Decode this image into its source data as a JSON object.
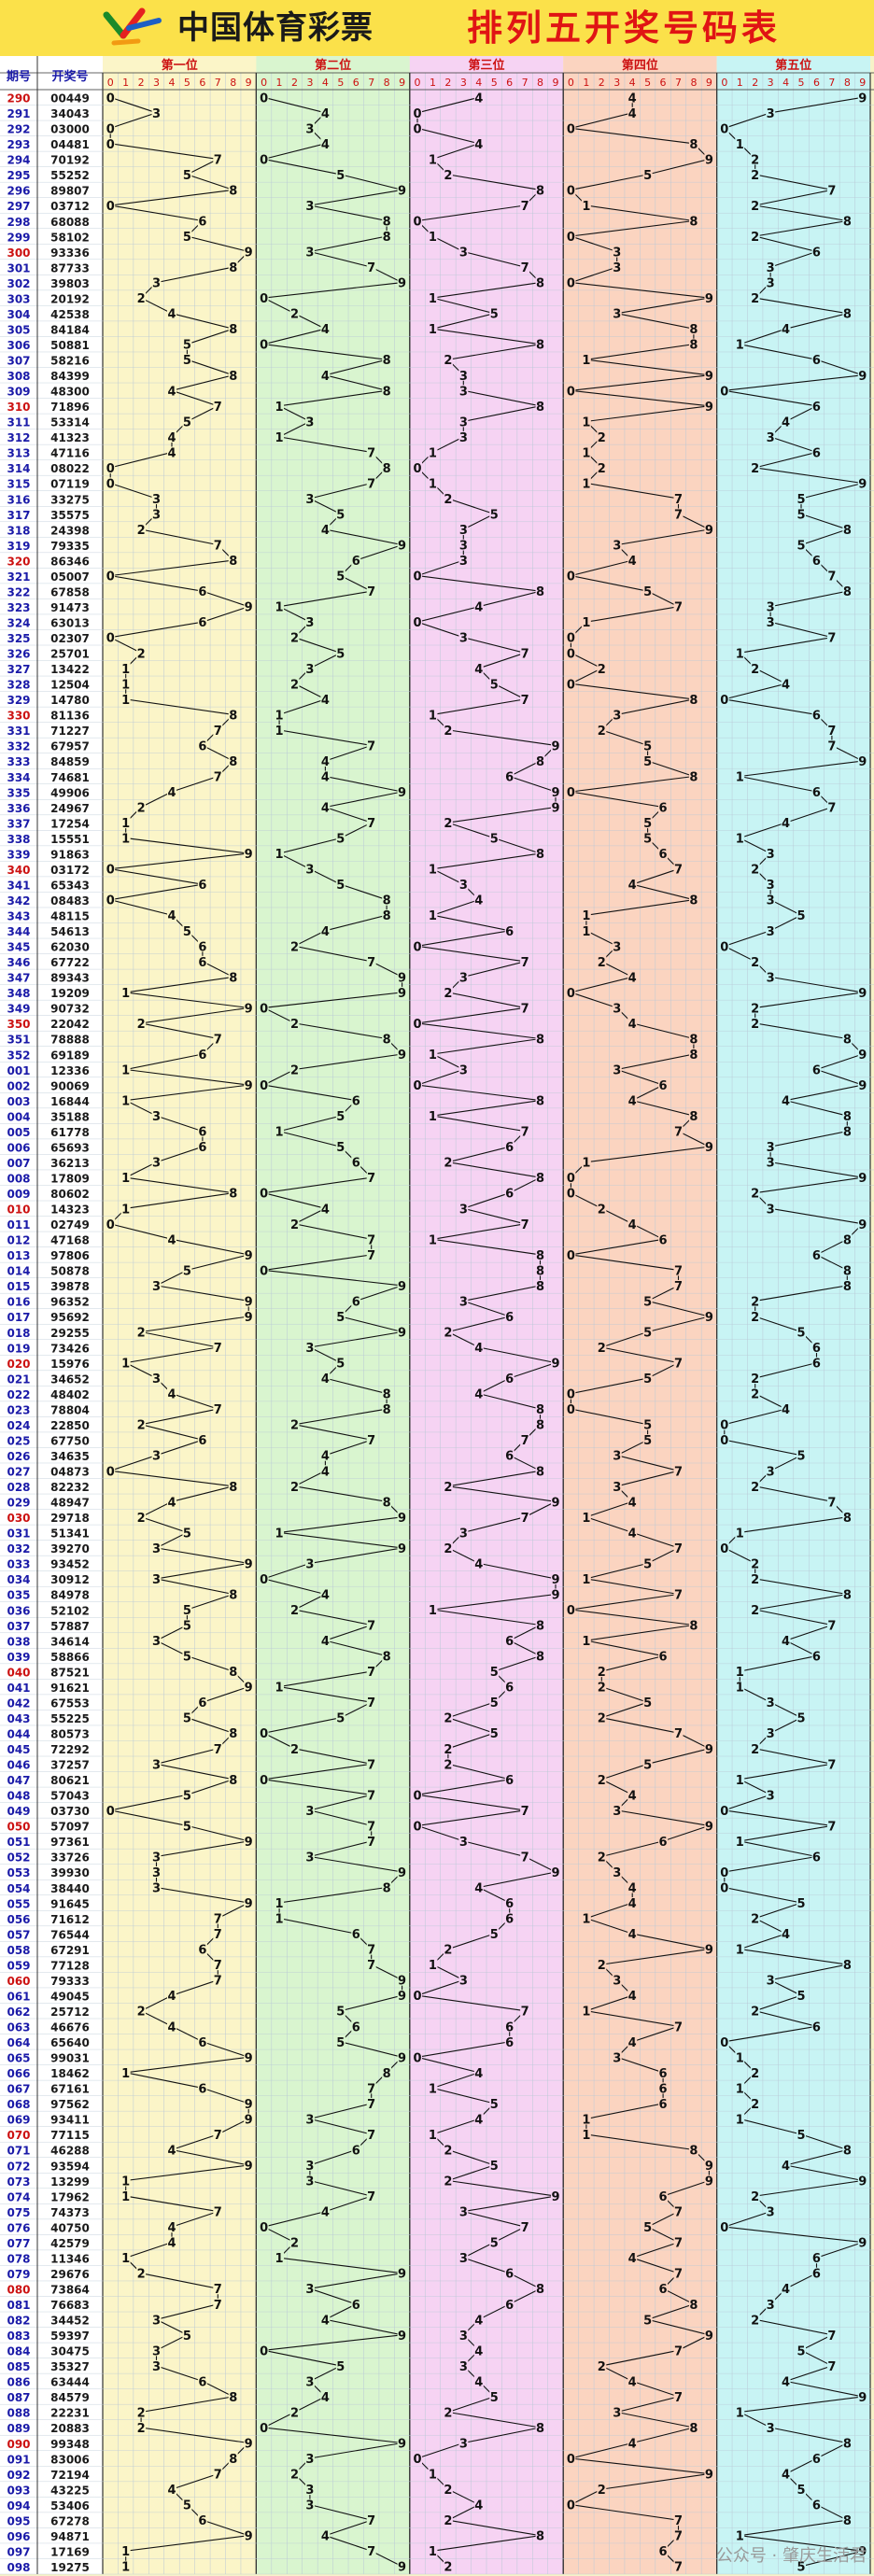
{
  "header": {
    "brand": "中国体育彩票",
    "title": "排列五开奖号码表"
  },
  "columns": {
    "issue": "期号",
    "number": "开奖号"
  },
  "positions": [
    "第一位",
    "第二位",
    "第三位",
    "第四位",
    "第五位"
  ],
  "digits": [
    "0",
    "1",
    "2",
    "3",
    "4",
    "5",
    "6",
    "7",
    "8",
    "9"
  ],
  "watermark": "公众号 · 肇庆生活君",
  "colors": {
    "header_bg": "#fbe14a",
    "title": "#e01414",
    "issue_red": "#cc1111",
    "issue_blue": "#1a1aa8",
    "band1": "#fbf5c8",
    "band2": "#d9f5cf",
    "band3": "#f6d3f3",
    "band4": "#fbd4c0",
    "band5": "#c8f4f4"
  },
  "chart_data": {
    "type": "line",
    "title": "排列五开奖号码表",
    "series": [
      {
        "name": "第一位"
      },
      {
        "name": "第二位"
      },
      {
        "name": "第三位"
      },
      {
        "name": "第四位"
      },
      {
        "name": "第五位"
      }
    ],
    "rows": [
      [
        "290",
        "00449"
      ],
      [
        "291",
        "34043"
      ],
      [
        "292",
        "03000"
      ],
      [
        "293",
        "04481"
      ],
      [
        "294",
        "70192"
      ],
      [
        "295",
        "55252"
      ],
      [
        "296",
        "89807"
      ],
      [
        "297",
        "03712"
      ],
      [
        "298",
        "68088"
      ],
      [
        "299",
        "58102"
      ],
      [
        "300",
        "93336"
      ],
      [
        "301",
        "87733"
      ],
      [
        "302",
        "39803"
      ],
      [
        "303",
        "20192"
      ],
      [
        "304",
        "42538"
      ],
      [
        "305",
        "84184"
      ],
      [
        "306",
        "50881"
      ],
      [
        "307",
        "58216"
      ],
      [
        "308",
        "84399"
      ],
      [
        "309",
        "48300"
      ],
      [
        "310",
        "71896"
      ],
      [
        "311",
        "53314"
      ],
      [
        "312",
        "41323"
      ],
      [
        "313",
        "47116"
      ],
      [
        "314",
        "08022"
      ],
      [
        "315",
        "07119"
      ],
      [
        "316",
        "33275"
      ],
      [
        "317",
        "35575"
      ],
      [
        "318",
        "24398"
      ],
      [
        "319",
        "79335"
      ],
      [
        "320",
        "86346"
      ],
      [
        "321",
        "05007"
      ],
      [
        "322",
        "67858"
      ],
      [
        "323",
        "91473"
      ],
      [
        "324",
        "63013"
      ],
      [
        "325",
        "02307"
      ],
      [
        "326",
        "25701"
      ],
      [
        "327",
        "13422"
      ],
      [
        "328",
        "12504"
      ],
      [
        "329",
        "14780"
      ],
      [
        "330",
        "81136"
      ],
      [
        "331",
        "71227"
      ],
      [
        "332",
        "67957"
      ],
      [
        "333",
        "84859"
      ],
      [
        "334",
        "74681"
      ],
      [
        "335",
        "49906"
      ],
      [
        "336",
        "24967"
      ],
      [
        "337",
        "17254"
      ],
      [
        "338",
        "15551"
      ],
      [
        "339",
        "91863"
      ],
      [
        "340",
        "03172"
      ],
      [
        "341",
        "65343"
      ],
      [
        "342",
        "08483"
      ],
      [
        "343",
        "48115"
      ],
      [
        "344",
        "54613"
      ],
      [
        "345",
        "62030"
      ],
      [
        "346",
        "67722"
      ],
      [
        "347",
        "89343"
      ],
      [
        "348",
        "19209"
      ],
      [
        "349",
        "90732"
      ],
      [
        "350",
        "22042"
      ],
      [
        "351",
        "78888"
      ],
      [
        "352",
        "69189"
      ],
      [
        "001",
        "12336"
      ],
      [
        "002",
        "90069"
      ],
      [
        "003",
        "16844"
      ],
      [
        "004",
        "35188"
      ],
      [
        "005",
        "61778"
      ],
      [
        "006",
        "65693"
      ],
      [
        "007",
        "36213"
      ],
      [
        "008",
        "17809"
      ],
      [
        "009",
        "80602"
      ],
      [
        "010",
        "14323"
      ],
      [
        "011",
        "02749"
      ],
      [
        "012",
        "47168"
      ],
      [
        "013",
        "97806"
      ],
      [
        "014",
        "50878"
      ],
      [
        "015",
        "39878"
      ],
      [
        "016",
        "96352"
      ],
      [
        "017",
        "95692"
      ],
      [
        "018",
        "29255"
      ],
      [
        "019",
        "73426"
      ],
      [
        "020",
        "15976"
      ],
      [
        "021",
        "34652"
      ],
      [
        "022",
        "48402"
      ],
      [
        "023",
        "78804"
      ],
      [
        "024",
        "22850"
      ],
      [
        "025",
        "67750"
      ],
      [
        "026",
        "34635"
      ],
      [
        "027",
        "04873"
      ],
      [
        "028",
        "82232"
      ],
      [
        "029",
        "48947"
      ],
      [
        "030",
        "29718"
      ],
      [
        "031",
        "51341"
      ],
      [
        "032",
        "39270"
      ],
      [
        "033",
        "93452"
      ],
      [
        "034",
        "30912"
      ],
      [
        "035",
        "84978"
      ],
      [
        "036",
        "52102"
      ],
      [
        "037",
        "57887"
      ],
      [
        "038",
        "34614"
      ],
      [
        "039",
        "58866"
      ],
      [
        "040",
        "87521"
      ],
      [
        "041",
        "91621"
      ],
      [
        "042",
        "67553"
      ],
      [
        "043",
        "55225"
      ],
      [
        "044",
        "80573"
      ],
      [
        "045",
        "72292"
      ],
      [
        "046",
        "37257"
      ],
      [
        "047",
        "80621"
      ],
      [
        "048",
        "57043"
      ],
      [
        "049",
        "03730"
      ],
      [
        "050",
        "57097"
      ],
      [
        "051",
        "97361"
      ],
      [
        "052",
        "33726"
      ],
      [
        "053",
        "39930"
      ],
      [
        "054",
        "38440"
      ],
      [
        "055",
        "91645"
      ],
      [
        "056",
        "71612"
      ],
      [
        "057",
        "76544"
      ],
      [
        "058",
        "67291"
      ],
      [
        "059",
        "77128"
      ],
      [
        "060",
        "79333"
      ],
      [
        "061",
        "49045"
      ],
      [
        "062",
        "25712"
      ],
      [
        "063",
        "46676"
      ],
      [
        "064",
        "65640"
      ],
      [
        "065",
        "99031"
      ],
      [
        "066",
        "18462"
      ],
      [
        "067",
        "67161"
      ],
      [
        "068",
        "97562"
      ],
      [
        "069",
        "93411"
      ],
      [
        "070",
        "77115"
      ],
      [
        "071",
        "46288"
      ],
      [
        "072",
        "93594"
      ],
      [
        "073",
        "13299"
      ],
      [
        "074",
        "17962"
      ],
      [
        "075",
        "74373"
      ],
      [
        "076",
        "40750"
      ],
      [
        "077",
        "42579"
      ],
      [
        "078",
        "11346"
      ],
      [
        "079",
        "29676"
      ],
      [
        "080",
        "73864"
      ],
      [
        "081",
        "76683"
      ],
      [
        "082",
        "34452"
      ],
      [
        "083",
        "59397"
      ],
      [
        "084",
        "30475"
      ],
      [
        "085",
        "35327"
      ],
      [
        "086",
        "63444"
      ],
      [
        "087",
        "84579"
      ],
      [
        "088",
        "22231"
      ],
      [
        "089",
        "20883"
      ],
      [
        "090",
        "99348"
      ],
      [
        "091",
        "83006"
      ],
      [
        "092",
        "72194"
      ],
      [
        "093",
        "43225"
      ],
      [
        "094",
        "53406"
      ],
      [
        "095",
        "67278"
      ],
      [
        "096",
        "94871"
      ],
      [
        "097",
        "17169"
      ],
      [
        "098",
        "19275"
      ]
    ]
  }
}
